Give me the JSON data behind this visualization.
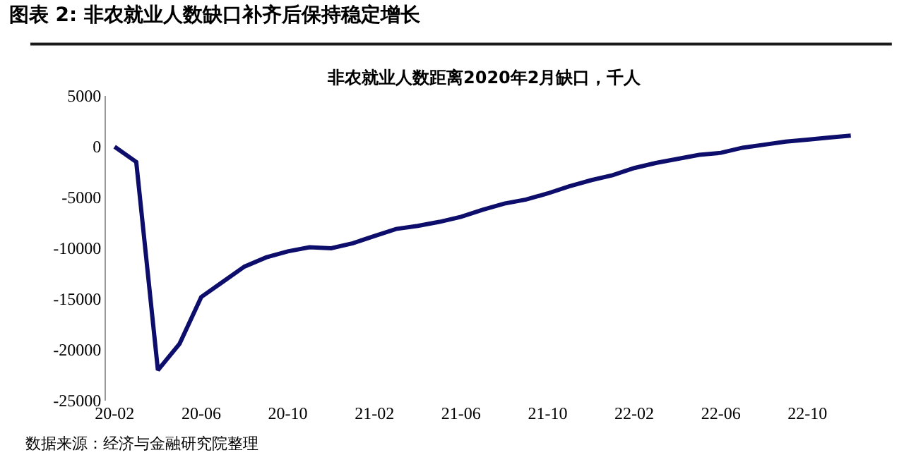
{
  "chart_data": {
    "type": "line",
    "title": "图表 2: 非农就业人数缺口补齐后保持稳定增长",
    "subtitle": "非农就业人数距离2020年2月缺口，千人",
    "categories": [
      "20-02",
      null,
      null,
      null,
      "20-06",
      null,
      null,
      null,
      "20-10",
      null,
      null,
      null,
      "21-02",
      null,
      null,
      null,
      "21-06",
      null,
      null,
      null,
      "21-10",
      null,
      null,
      null,
      "22-02",
      null,
      null,
      null,
      "22-06",
      null,
      null,
      null,
      "22-10",
      null,
      null
    ],
    "series": [
      {
        "color": "#0d0d6b",
        "values": [
          0,
          -1500,
          -22000,
          -19400,
          -14800,
          -13300,
          -11800,
          -10900,
          -10300,
          -9900,
          -10000,
          -9500,
          -8800,
          -8100,
          -7800,
          -7400,
          -6900,
          -6200,
          -5600,
          -5200,
          -4600,
          -3900,
          -3300,
          -2800,
          -2100,
          -1600,
          -1200,
          -800,
          -600,
          -100,
          200,
          500,
          700,
          900,
          1100
        ]
      }
    ],
    "ylim": [
      -25000,
      5000
    ],
    "yticks": [
      -25000,
      -20000,
      -15000,
      -10000,
      -5000,
      0,
      5000
    ],
    "marker": "none",
    "line_style": "solid",
    "annotations": [
      "数据来源：经济与金融研究院整理"
    ]
  }
}
